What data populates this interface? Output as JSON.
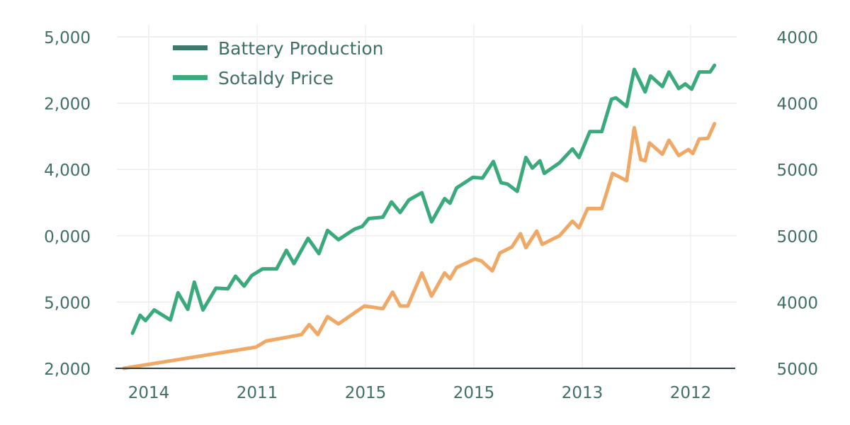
{
  "chart_data": {
    "type": "line",
    "title": "",
    "xlabel": "",
    "ylabel": "",
    "grid": true,
    "legend_position": "top-left",
    "x_ticks": [
      {
        "value": 0,
        "label": "2014"
      },
      {
        "value": 1,
        "label": "2011"
      },
      {
        "value": 2,
        "label": "2015"
      },
      {
        "value": 3,
        "label": "2015"
      },
      {
        "value": 4,
        "label": "2013"
      },
      {
        "value": 5,
        "label": "2012"
      }
    ],
    "y_left_ticks": [
      {
        "value": 5,
        "label": "5,000"
      },
      {
        "value": 4,
        "label": "2,000"
      },
      {
        "value": 3,
        "label": "4,000"
      },
      {
        "value": 2,
        "label": "0,000"
      },
      {
        "value": 1,
        "label": "5,000"
      },
      {
        "value": 0,
        "label": "2,000"
      }
    ],
    "y_right_ticks": [
      {
        "value": 5,
        "label": "4000"
      },
      {
        "value": 4,
        "label": "4000"
      },
      {
        "value": 3,
        "label": "5000"
      },
      {
        "value": 2,
        "label": "5000"
      },
      {
        "value": 1,
        "label": "4000"
      },
      {
        "value": 0,
        "label": "5000"
      }
    ],
    "xlim": [
      -0.3,
      5.4
    ],
    "ylim": [
      0,
      5
    ],
    "legend": [
      {
        "label": "Battery Production",
        "color": "#3d7a6b"
      },
      {
        "label": "Sotaldy Price",
        "color": "#3aaa7c"
      }
    ],
    "series": [
      {
        "name": "Sotaldy Price",
        "color": "#3aaa7c",
        "x": [
          -0.15,
          -0.08,
          -0.03,
          0.05,
          0.2,
          0.27,
          0.36,
          0.42,
          0.5,
          0.62,
          0.73,
          0.8,
          0.88,
          0.95,
          1.05,
          1.18,
          1.27,
          1.34,
          1.47,
          1.57,
          1.65,
          1.75,
          1.9,
          1.97,
          2.03,
          2.16,
          2.24,
          2.32,
          2.4,
          2.52,
          2.61,
          2.73,
          2.78,
          2.84,
          2.99,
          3.08,
          3.18,
          3.25,
          3.31,
          3.4,
          3.48,
          3.54,
          3.61,
          3.65,
          3.79,
          3.91,
          3.97,
          4.07,
          4.18,
          4.27,
          4.31,
          4.41,
          4.48,
          4.58,
          4.63,
          4.74,
          4.8,
          4.89,
          4.95,
          5.01,
          5.08,
          5.18,
          5.22
        ],
        "y": [
          0.53,
          0.8,
          0.72,
          0.88,
          0.73,
          1.14,
          0.89,
          1.3,
          0.88,
          1.21,
          1.2,
          1.39,
          1.24,
          1.4,
          1.5,
          1.5,
          1.78,
          1.58,
          1.96,
          1.73,
          2.08,
          1.94,
          2.1,
          2.14,
          2.26,
          2.28,
          2.51,
          2.35,
          2.54,
          2.65,
          2.21,
          2.56,
          2.49,
          2.72,
          2.88,
          2.87,
          3.12,
          2.8,
          2.78,
          2.67,
          3.18,
          3.02,
          3.13,
          2.94,
          3.1,
          3.31,
          3.18,
          3.57,
          3.57,
          4.06,
          4.08,
          3.95,
          4.51,
          4.17,
          4.41,
          4.25,
          4.47,
          4.22,
          4.29,
          4.21,
          4.47,
          4.47,
          4.57
        ]
      },
      {
        "color": "#f0a866",
        "x": [
          -0.23,
          0.99,
          1.08,
          1.41,
          1.48,
          1.56,
          1.65,
          1.75,
          1.99,
          2.16,
          2.25,
          2.32,
          2.39,
          2.52,
          2.61,
          2.73,
          2.78,
          2.84,
          3.01,
          3.07,
          3.17,
          3.24,
          3.35,
          3.43,
          3.48,
          3.58,
          3.63,
          3.79,
          3.91,
          3.97,
          4.05,
          4.18,
          4.28,
          4.41,
          4.48,
          4.54,
          4.58,
          4.62,
          4.74,
          4.8,
          4.89,
          4.98,
          5.02,
          5.08,
          5.16,
          5.22
        ],
        "y": [
          0,
          0.32,
          0.41,
          0.51,
          0.66,
          0.51,
          0.78,
          0.67,
          0.94,
          0.9,
          1.15,
          0.94,
          0.94,
          1.44,
          1.09,
          1.44,
          1.35,
          1.52,
          1.65,
          1.62,
          1.47,
          1.74,
          1.83,
          2.03,
          1.82,
          2.07,
          1.87,
          2.0,
          2.22,
          2.12,
          2.41,
          2.41,
          2.94,
          2.83,
          3.63,
          3.15,
          3.13,
          3.4,
          3.23,
          3.44,
          3.21,
          3.3,
          3.24,
          3.46,
          3.47,
          3.69
        ]
      }
    ]
  }
}
